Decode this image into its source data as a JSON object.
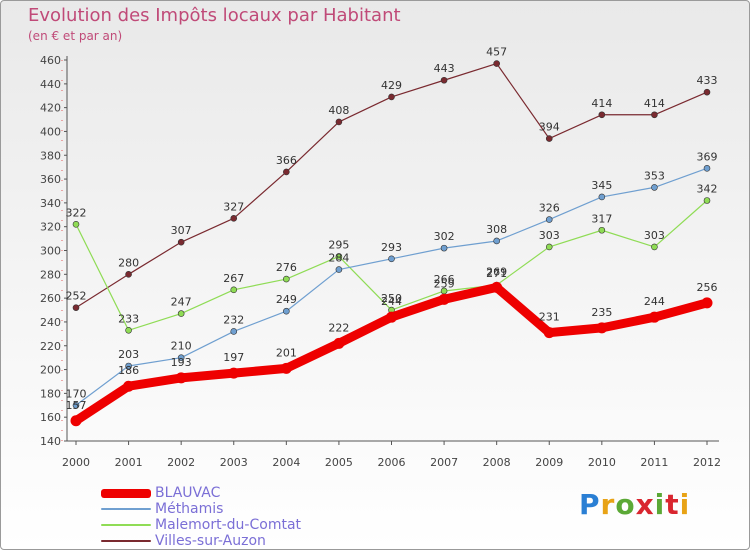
{
  "title": "Evolution des Impôts locaux par Habitant",
  "subtitle": "(en € et par an)",
  "brand": {
    "text": "Proxiti"
  },
  "chart_data": {
    "type": "line",
    "title": "Evolution des Impôts locaux par Habitant",
    "subtitle": "(en € et par an)",
    "x": [
      "2000",
      "2001",
      "2002",
      "2003",
      "2004",
      "2005",
      "2006",
      "2007",
      "2008",
      "2009",
      "2010",
      "2011",
      "2012"
    ],
    "ylim": [
      140,
      460
    ],
    "yticks": [
      140,
      160,
      180,
      200,
      220,
      240,
      260,
      280,
      300,
      320,
      340,
      360,
      380,
      400,
      420,
      440,
      460
    ],
    "grid": false,
    "legend": "bottom-left",
    "series": [
      {
        "name": "BLAUVAC",
        "color": "#ee0000",
        "values": [
          157,
          186,
          193,
          197,
          201,
          222,
          244,
          259,
          269,
          231,
          235,
          244,
          256
        ],
        "labels": [
          "157",
          "186",
          "193",
          "197",
          "201",
          "222",
          "244",
          "259",
          "269",
          "231",
          "235",
          "244",
          "256"
        ]
      },
      {
        "name": "Méthamis",
        "color": "#6f9fd0",
        "values": [
          170,
          203,
          210,
          232,
          249,
          284,
          293,
          302,
          308,
          326,
          345,
          353,
          369
        ],
        "labels": [
          "170",
          "203",
          "210",
          "232",
          "249",
          "284",
          "293",
          "302",
          "308",
          "326",
          "345",
          "353",
          "369"
        ]
      },
      {
        "name": "Malemort-du-Comtat",
        "color": "#8fdc55",
        "values": [
          322,
          233,
          247,
          267,
          276,
          295,
          250,
          266,
          271,
          303,
          317,
          303,
          342
        ],
        "labels": [
          "322",
          "233",
          "247",
          "267",
          "276",
          "295",
          "250",
          "266",
          "271",
          "303",
          "317",
          "303",
          "342"
        ]
      },
      {
        "name": "Villes-sur-Auzon",
        "color": "#7a2a30",
        "values": [
          252,
          280,
          307,
          327,
          366,
          408,
          429,
          443,
          457,
          394,
          414,
          414,
          433
        ],
        "labels": [
          "252",
          "280",
          "307",
          "327",
          "366",
          "408",
          "429",
          "443",
          "457",
          "394",
          "414",
          "414",
          "433"
        ]
      }
    ]
  }
}
